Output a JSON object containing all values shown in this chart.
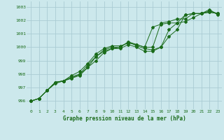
{
  "title": "Graphe pression niveau de la mer (hPa)",
  "bg_color": "#cce8ec",
  "grid_color": "#aaccd4",
  "line_color": "#1a6b1a",
  "text_color": "#1a6b1a",
  "xlim": [
    -0.5,
    23.5
  ],
  "ylim": [
    995.4,
    1003.4
  ],
  "yticks": [
    996,
    997,
    998,
    999,
    1000,
    1001,
    1002,
    1003
  ],
  "xticks": [
    0,
    1,
    2,
    3,
    4,
    5,
    6,
    7,
    8,
    9,
    10,
    11,
    12,
    13,
    14,
    15,
    16,
    17,
    18,
    19,
    20,
    21,
    22,
    23
  ],
  "series": [
    [
      996.0,
      996.2,
      996.8,
      997.4,
      997.5,
      997.7,
      998.0,
      998.5,
      999.3,
      999.7,
      999.9,
      1000.0,
      1000.4,
      1000.1,
      999.9,
      999.8,
      1000.0,
      1000.8,
      1001.3,
      1002.4,
      1002.5,
      1002.5,
      1002.6,
      1002.5
    ],
    [
      996.0,
      996.2,
      996.8,
      997.4,
      997.5,
      997.7,
      997.9,
      998.5,
      999.0,
      999.6,
      999.9,
      999.9,
      1000.2,
      1000.0,
      999.7,
      999.7,
      1000.0,
      1001.3,
      1001.8,
      1002.4,
      1002.5,
      1002.5,
      1002.6,
      1002.5
    ],
    [
      996.0,
      996.2,
      996.8,
      997.4,
      997.5,
      997.9,
      998.2,
      998.8,
      999.5,
      999.9,
      1000.1,
      1000.1,
      1000.3,
      1000.2,
      1000.0,
      1001.5,
      1001.7,
      1001.8,
      1001.8,
      1001.9,
      1002.2,
      1002.5,
      1002.7,
      1002.5
    ],
    [
      996.0,
      996.2,
      996.8,
      997.3,
      997.5,
      997.8,
      998.0,
      998.7,
      999.3,
      999.8,
      1000.0,
      1000.0,
      1000.4,
      1000.2,
      1000.0,
      1000.0,
      1001.8,
      1001.9,
      1002.1,
      1002.1,
      1002.5,
      1002.5,
      1002.8,
      1002.4
    ]
  ]
}
